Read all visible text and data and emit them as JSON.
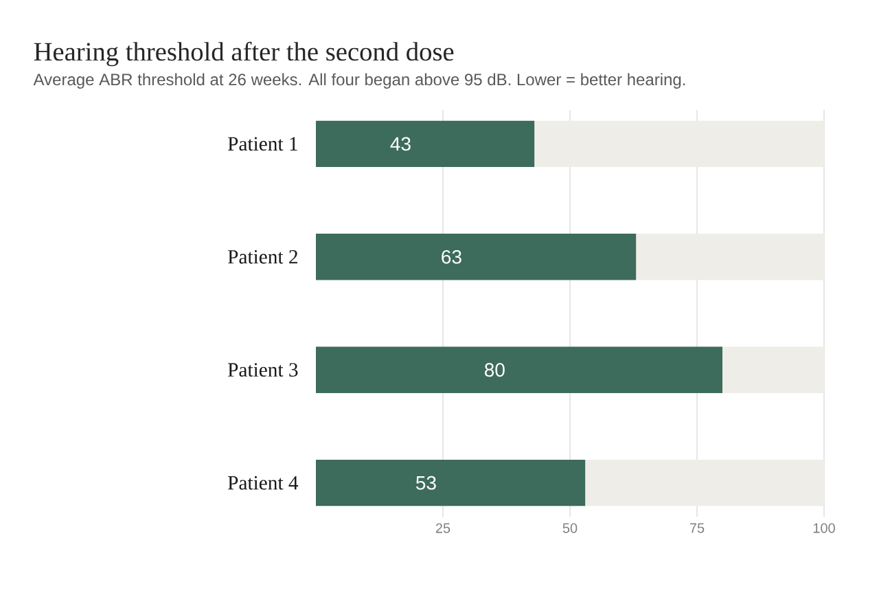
{
  "chart_data": {
    "type": "bar",
    "orientation": "horizontal",
    "stacked": true,
    "title": "Hearing threshold after the second dose",
    "subtitle": "Average ABR threshold at 26 weeks. All four began above 95 dB. Lower = better hearing.",
    "categories": [
      "Patient 1",
      "Patient 2",
      "Patient 3",
      "Patient 4"
    ],
    "series": [
      {
        "color": "#3d6b5c",
        "values": [
          43,
          63,
          80,
          53
        ],
        "value_labels": [
          "43",
          "63",
          "80",
          "53"
        ]
      },
      {
        "color": "#efede8",
        "values": [
          57,
          37,
          20,
          47
        ]
      }
    ],
    "xlim": [
      0,
      100
    ],
    "xticks": [
      25,
      50,
      75,
      100
    ],
    "grid": "x"
  }
}
